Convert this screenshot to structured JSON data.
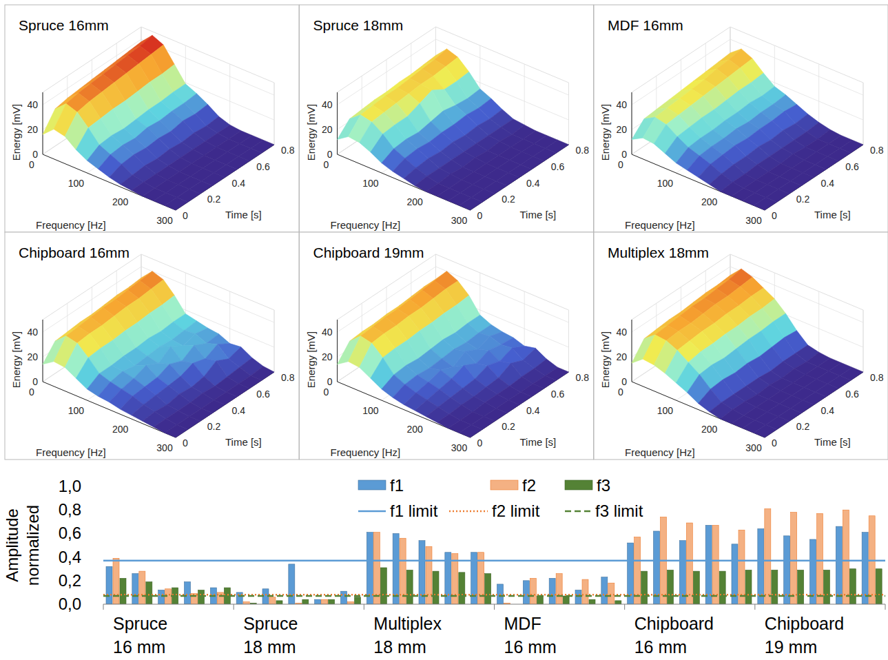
{
  "chart_data": [
    {
      "type": "surface",
      "title": "Spruce 16mm",
      "xlabel": "Frequency [Hz]",
      "ylabel": "Time [s]",
      "zlabel": "Energy [mV]",
      "x": [
        0,
        25,
        50,
        75,
        100,
        125,
        150,
        175,
        200,
        225,
        250,
        275,
        300
      ],
      "y": [
        0,
        0.1,
        0.2,
        0.3,
        0.4,
        0.5,
        0.6,
        0.7,
        0.8
      ],
      "xlim": [
        0,
        300
      ],
      "xticks": [
        0,
        100,
        200,
        300
      ],
      "ylim": [
        0,
        0.8
      ],
      "yticks": [
        0,
        0.2,
        0.4,
        0.6,
        0.8
      ],
      "zlim": [
        0,
        50
      ],
      "zticks": [
        0,
        20,
        40
      ],
      "z": [
        [
          16,
          24,
          22,
          15,
          10,
          7,
          4,
          2,
          1,
          0,
          0,
          0,
          0
        ],
        [
          30,
          38,
          35,
          26,
          16,
          12,
          8,
          3,
          1,
          0,
          0,
          0,
          0
        ],
        [
          32,
          40,
          37,
          27,
          17,
          13,
          9,
          4,
          1,
          0,
          0,
          0,
          0
        ],
        [
          33,
          41,
          38,
          28,
          16,
          12,
          8,
          3,
          1,
          0,
          0,
          0,
          0
        ],
        [
          34,
          42,
          39,
          28,
          17,
          14,
          9,
          4,
          1,
          0,
          0,
          0,
          0
        ],
        [
          35,
          43,
          40,
          29,
          18,
          13,
          8,
          3,
          1,
          0,
          0,
          0,
          0
        ],
        [
          36,
          44,
          41,
          30,
          18,
          14,
          10,
          4,
          1,
          0,
          0,
          0,
          0
        ],
        [
          37,
          45,
          42,
          30,
          19,
          14,
          9,
          3,
          1,
          0,
          0,
          0,
          0
        ],
        [
          38,
          47,
          43,
          31,
          19,
          15,
          10,
          4,
          1,
          0,
          0,
          0,
          0
        ]
      ]
    },
    {
      "type": "surface",
      "title": "Spruce 18mm",
      "xlabel": "Frequency [Hz]",
      "ylabel": "Time [s]",
      "zlabel": "Energy [mV]",
      "x": [
        0,
        25,
        50,
        75,
        100,
        125,
        150,
        175,
        200,
        225,
        250,
        275,
        300
      ],
      "y": [
        0,
        0.1,
        0.2,
        0.3,
        0.4,
        0.5,
        0.6,
        0.7,
        0.8
      ],
      "xlim": [
        0,
        300
      ],
      "xticks": [
        0,
        100,
        200,
        300
      ],
      "ylim": [
        0,
        0.8
      ],
      "yticks": [
        0,
        0.2,
        0.4,
        0.6,
        0.8
      ],
      "zlim": [
        0,
        50
      ],
      "zticks": [
        0,
        20,
        40
      ],
      "z": [
        [
          12,
          18,
          17,
          13,
          8,
          5,
          3,
          1,
          0,
          0,
          0,
          0,
          0
        ],
        [
          22,
          29,
          27,
          21,
          13,
          9,
          5,
          2,
          0,
          0,
          0,
          0,
          0
        ],
        [
          23,
          30,
          28,
          22,
          14,
          10,
          6,
          2,
          1,
          0,
          0,
          0,
          0
        ],
        [
          24,
          31,
          29,
          22,
          13,
          9,
          5,
          2,
          0,
          0,
          0,
          0,
          0
        ],
        [
          24,
          31,
          30,
          26,
          15,
          10,
          6,
          2,
          1,
          0,
          0,
          0,
          0
        ],
        [
          25,
          32,
          31,
          30,
          17,
          10,
          5,
          2,
          0,
          0,
          0,
          0,
          0
        ],
        [
          25,
          33,
          31,
          24,
          15,
          11,
          6,
          2,
          1,
          0,
          0,
          0,
          0
        ],
        [
          26,
          34,
          32,
          24,
          14,
          10,
          5,
          2,
          0,
          0,
          0,
          0,
          0
        ],
        [
          27,
          36,
          33,
          25,
          15,
          11,
          6,
          2,
          1,
          0,
          0,
          0,
          0
        ]
      ]
    },
    {
      "type": "surface",
      "title": "MDF 16mm",
      "xlabel": "Frequency [Hz]",
      "ylabel": "Time [s]",
      "zlabel": "Energy [mV]",
      "x": [
        0,
        25,
        50,
        75,
        100,
        125,
        150,
        175,
        200,
        225,
        250,
        275,
        300
      ],
      "y": [
        0,
        0.1,
        0.2,
        0.3,
        0.4,
        0.5,
        0.6,
        0.7,
        0.8
      ],
      "xlim": [
        0,
        300
      ],
      "xticks": [
        0,
        100,
        200,
        300
      ],
      "ylim": [
        0,
        0.8
      ],
      "yticks": [
        0,
        0.2,
        0.4,
        0.6,
        0.8
      ],
      "zlim": [
        0,
        50
      ],
      "zticks": [
        0,
        20,
        40
      ],
      "z": [
        [
          12,
          17,
          16,
          12,
          8,
          6,
          4,
          2,
          0,
          0,
          0,
          0,
          0
        ],
        [
          22,
          27,
          25,
          19,
          14,
          11,
          8,
          4,
          1,
          0,
          0,
          0,
          0
        ],
        [
          23,
          28,
          26,
          20,
          15,
          12,
          9,
          5,
          1,
          0,
          0,
          0,
          0
        ],
        [
          24,
          29,
          27,
          21,
          15,
          12,
          10,
          5,
          2,
          0,
          0,
          0,
          0
        ],
        [
          25,
          30,
          28,
          21,
          16,
          13,
          9,
          6,
          2,
          0,
          0,
          0,
          0
        ],
        [
          26,
          31,
          29,
          22,
          16,
          12,
          10,
          5,
          2,
          1,
          0,
          0,
          0
        ],
        [
          27,
          33,
          30,
          23,
          17,
          13,
          10,
          6,
          2,
          0,
          0,
          0,
          0
        ],
        [
          28,
          34,
          31,
          23,
          16,
          13,
          11,
          5,
          2,
          0,
          0,
          0,
          0
        ],
        [
          29,
          36,
          32,
          24,
          17,
          14,
          10,
          6,
          3,
          1,
          0,
          0,
          0
        ]
      ]
    },
    {
      "type": "surface",
      "title": "Chipboard 16mm",
      "xlabel": "Frequency [Hz]",
      "ylabel": "Time [s]",
      "zlabel": "Energy [mV]",
      "x": [
        0,
        25,
        50,
        75,
        100,
        125,
        150,
        175,
        200,
        225,
        250,
        275,
        300
      ],
      "y": [
        0,
        0.1,
        0.2,
        0.3,
        0.4,
        0.5,
        0.6,
        0.7,
        0.8
      ],
      "xlim": [
        0,
        300
      ],
      "xticks": [
        0,
        100,
        200,
        300
      ],
      "ylim": [
        0,
        0.8
      ],
      "yticks": [
        0,
        0.2,
        0.4,
        0.6,
        0.8
      ],
      "zlim": [
        0,
        50
      ],
      "zticks": [
        0,
        20,
        40
      ],
      "z": [
        [
          14,
          20,
          19,
          14,
          9,
          7,
          6,
          4,
          3,
          2,
          1,
          0,
          0
        ],
        [
          26,
          34,
          32,
          24,
          15,
          12,
          10,
          8,
          5,
          3,
          1,
          0,
          0
        ],
        [
          27,
          35,
          33,
          25,
          15,
          14,
          12,
          9,
          6,
          2,
          1,
          0,
          0
        ],
        [
          28,
          36,
          33,
          25,
          16,
          12,
          16,
          10,
          7,
          4,
          1,
          0,
          0
        ],
        [
          28,
          37,
          34,
          26,
          16,
          13,
          11,
          14,
          8,
          3,
          2,
          0,
          0
        ],
        [
          29,
          37,
          35,
          26,
          17,
          14,
          18,
          10,
          12,
          5,
          1,
          0,
          0
        ],
        [
          30,
          38,
          35,
          27,
          16,
          13,
          12,
          16,
          9,
          11,
          2,
          0,
          0
        ],
        [
          30,
          39,
          36,
          27,
          17,
          14,
          15,
          11,
          14,
          6,
          3,
          0,
          0
        ],
        [
          31,
          40,
          37,
          28,
          17,
          15,
          13,
          12,
          8,
          9,
          4,
          1,
          0
        ]
      ]
    },
    {
      "type": "surface",
      "title": "Chipboard 19mm",
      "xlabel": "Frequency [Hz]",
      "ylabel": "Time [s]",
      "zlabel": "Energy [mV]",
      "x": [
        0,
        25,
        50,
        75,
        100,
        125,
        150,
        175,
        200,
        225,
        250,
        275,
        300
      ],
      "y": [
        0,
        0.1,
        0.2,
        0.3,
        0.4,
        0.5,
        0.6,
        0.7,
        0.8
      ],
      "xlim": [
        0,
        300
      ],
      "xticks": [
        0,
        100,
        200,
        300
      ],
      "ylim": [
        0,
        0.8
      ],
      "yticks": [
        0,
        0.2,
        0.4,
        0.6,
        0.8
      ],
      "zlim": [
        0,
        50
      ],
      "zticks": [
        0,
        20,
        40
      ],
      "z": [
        [
          14,
          20,
          19,
          14,
          9,
          6,
          4,
          3,
          2,
          1,
          0,
          0,
          0
        ],
        [
          26,
          34,
          32,
          24,
          14,
          10,
          7,
          5,
          3,
          1,
          0,
          0,
          0
        ],
        [
          27,
          35,
          33,
          25,
          15,
          11,
          9,
          7,
          4,
          2,
          0,
          0,
          0
        ],
        [
          27,
          36,
          33,
          25,
          14,
          10,
          12,
          9,
          5,
          2,
          1,
          0,
          0
        ],
        [
          28,
          36,
          34,
          26,
          15,
          11,
          8,
          13,
          6,
          3,
          1,
          0,
          0
        ],
        [
          28,
          37,
          34,
          26,
          16,
          12,
          14,
          8,
          10,
          4,
          1,
          0,
          0
        ],
        [
          29,
          38,
          35,
          27,
          15,
          11,
          9,
          12,
          7,
          9,
          2,
          0,
          0
        ],
        [
          30,
          39,
          36,
          27,
          16,
          12,
          13,
          10,
          11,
          5,
          2,
          0,
          0
        ],
        [
          30,
          40,
          36,
          28,
          16,
          12,
          10,
          9,
          6,
          8,
          3,
          0,
          0
        ]
      ]
    },
    {
      "type": "surface",
      "title": "Multiplex 18mm",
      "xlabel": "Frequency [Hz]",
      "ylabel": "Time [s]",
      "zlabel": "Energy [mV]",
      "x": [
        0,
        25,
        50,
        75,
        100,
        125,
        150,
        175,
        200,
        225,
        250,
        275,
        300
      ],
      "y": [
        0,
        0.1,
        0.2,
        0.3,
        0.4,
        0.5,
        0.6,
        0.7,
        0.8
      ],
      "xlim": [
        0,
        300
      ],
      "xticks": [
        0,
        100,
        200,
        300
      ],
      "ylim": [
        0,
        0.8
      ],
      "yticks": [
        0,
        0.2,
        0.4,
        0.6,
        0.8
      ],
      "zlim": [
        0,
        50
      ],
      "zticks": [
        0,
        20,
        40
      ],
      "z": [
        [
          15,
          22,
          21,
          18,
          14,
          10,
          5,
          2,
          0,
          0,
          0,
          0,
          0
        ],
        [
          28,
          35,
          34,
          30,
          24,
          18,
          10,
          3,
          1,
          0,
          0,
          0,
          0
        ],
        [
          29,
          36,
          35,
          31,
          26,
          19,
          11,
          3,
          1,
          0,
          0,
          0,
          0
        ],
        [
          30,
          37,
          35,
          32,
          26,
          18,
          10,
          3,
          0,
          0,
          0,
          0,
          0
        ],
        [
          30,
          38,
          36,
          32,
          27,
          19,
          11,
          3,
          1,
          0,
          0,
          0,
          0
        ],
        [
          31,
          38,
          37,
          33,
          27,
          20,
          10,
          2,
          0,
          0,
          0,
          0,
          0
        ],
        [
          32,
          39,
          37,
          33,
          28,
          20,
          11,
          3,
          1,
          0,
          0,
          0,
          0
        ],
        [
          32,
          40,
          38,
          34,
          28,
          21,
          12,
          3,
          0,
          0,
          0,
          0,
          0
        ],
        [
          33,
          42,
          39,
          34,
          29,
          21,
          11,
          3,
          1,
          0,
          0,
          0,
          0
        ]
      ]
    },
    {
      "type": "bar",
      "ylabel": "Amplitude normalized",
      "groups": [
        "Spruce 16 mm",
        "Spruce 18 mm",
        "Multiplex 18 mm",
        "MDF 16 mm",
        "Chipboard 16 mm",
        "Chipboard 19 mm"
      ],
      "ylim": [
        0,
        1
      ],
      "yticks": [
        {
          "value": 0,
          "label": "0,0"
        },
        {
          "value": 0.2,
          "label": "0,2"
        },
        {
          "value": 0.4,
          "label": "0,4"
        },
        {
          "value": 0.6,
          "label": "0,6"
        },
        {
          "value": 0.8,
          "label": "0,8"
        },
        {
          "value": 1,
          "label": "1,0"
        }
      ],
      "legend": "top",
      "series": [
        {
          "name": "f1",
          "color": "#5b9bd5",
          "values": [
            0.32,
            0.26,
            0.12,
            0.19,
            0.14,
            0.1,
            0.13,
            0.34,
            0.04,
            0.11,
            0.61,
            0.6,
            0.54,
            0.44,
            0.44,
            0.17,
            0.2,
            0.22,
            0.12,
            0.23,
            0.52,
            0.62,
            0.54,
            0.67,
            0.51,
            0.64,
            0.58,
            0.55,
            0.66,
            0.61
          ]
        },
        {
          "name": "f2",
          "color": "#f4b183",
          "values": [
            0.39,
            0.28,
            0.13,
            0.09,
            0.1,
            0.02,
            0.06,
            0.01,
            0.04,
            0.02,
            0.61,
            0.56,
            0.49,
            0.43,
            0.44,
            0.01,
            0.22,
            0.26,
            0.21,
            0.18,
            0.57,
            0.74,
            0.69,
            0.67,
            0.63,
            0.81,
            0.78,
            0.77,
            0.8,
            0.75
          ]
        },
        {
          "name": "f3",
          "color": "#548235",
          "values": [
            0.22,
            0.19,
            0.14,
            0.12,
            0.14,
            0.01,
            0.03,
            0.04,
            0.04,
            0.06,
            0.31,
            0.29,
            0.28,
            0.27,
            0.26,
            0.0,
            0.07,
            0.07,
            0.04,
            0.03,
            0.28,
            0.29,
            0.28,
            0.28,
            0.29,
            0.29,
            0.29,
            0.29,
            0.3,
            0.3
          ]
        }
      ],
      "limits": [
        {
          "name": "f1 limit",
          "color": "#5b9bd5",
          "value": 0.37,
          "line_style": "solid"
        },
        {
          "name": "f2 limit",
          "color": "#ed7d31",
          "value": 0.08,
          "line_style": "dotted"
        },
        {
          "name": "f3 limit",
          "color": "#548235",
          "value": 0.07,
          "line_style": "dashed"
        }
      ]
    }
  ]
}
